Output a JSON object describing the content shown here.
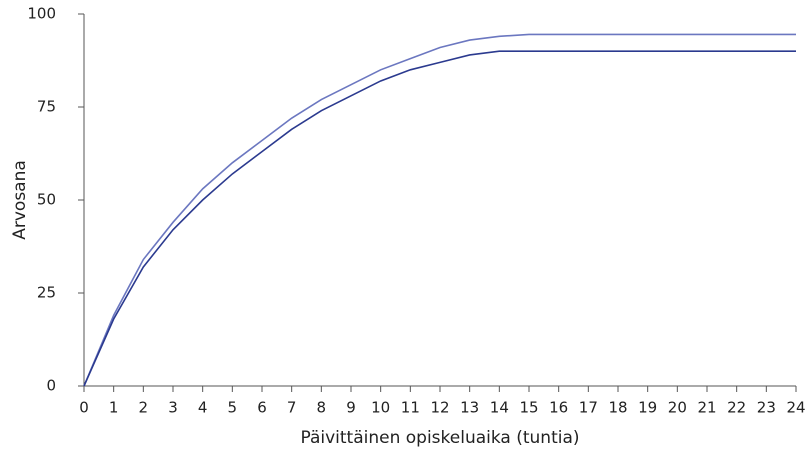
{
  "chart_data": {
    "type": "line",
    "x_label": "Päivittäinen opiskeluaika (tuntia)",
    "y_label": "Arvosana",
    "x": [
      0,
      1,
      2,
      3,
      4,
      5,
      6,
      7,
      8,
      9,
      10,
      11,
      12,
      13,
      14,
      15,
      16,
      17,
      18,
      19,
      20,
      21,
      22,
      23,
      24
    ],
    "series": [
      {
        "color": "#6b77c0",
        "values": [
          0,
          19,
          34,
          44,
          53,
          60,
          66,
          72,
          77,
          81,
          85,
          88,
          91,
          93,
          94,
          94.5,
          94.5,
          94.5,
          94.5,
          94.5,
          94.5,
          94.5,
          94.5,
          94.5,
          94.5
        ]
      },
      {
        "color": "#2b3a8f",
        "values": [
          0,
          18,
          32,
          42,
          50,
          57,
          63,
          69,
          74,
          78,
          82,
          85,
          87,
          89,
          90,
          90,
          90,
          90,
          90,
          90,
          90,
          90,
          90,
          90,
          90
        ]
      }
    ],
    "xlim": [
      0,
      24
    ],
    "xticks": [
      0,
      1,
      2,
      3,
      4,
      5,
      6,
      7,
      8,
      9,
      10,
      11,
      12,
      13,
      14,
      15,
      16,
      17,
      18,
      19,
      20,
      21,
      22,
      23,
      24
    ],
    "ylim": [
      0,
      100
    ],
    "yticks": [
      0,
      25,
      50,
      75,
      100
    ],
    "grid": false
  }
}
